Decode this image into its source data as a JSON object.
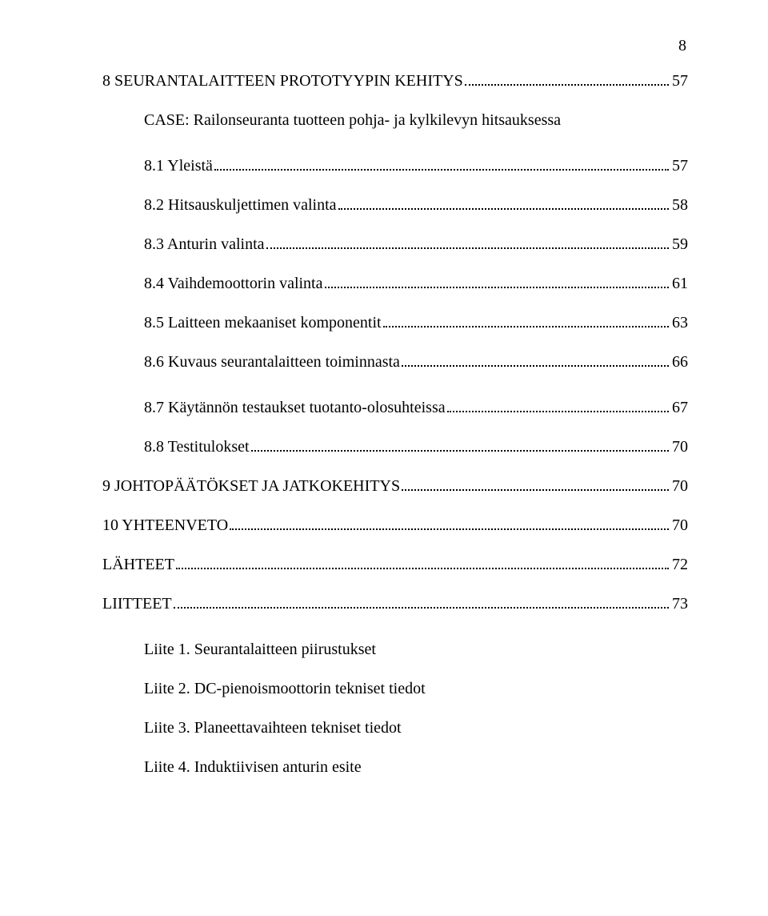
{
  "pageNumber": "8",
  "entries": [
    {
      "indent": 0,
      "label": "8 SEURANTALAITTEEN PROTOTYYPIN KEHITYS",
      "page": "57"
    },
    {
      "indent": 1,
      "nonum": true,
      "label": "CASE: Railonseuranta tuotteen pohja- ja kylkilevyn hitsauksessa"
    },
    {
      "indent": 1,
      "label": "8.1 Yleistä",
      "page": "57"
    },
    {
      "indent": 1,
      "label": "8.2 Hitsauskuljettimen valinta",
      "page": "58"
    },
    {
      "indent": 1,
      "label": "8.3 Anturin valinta",
      "page": "59"
    },
    {
      "indent": 1,
      "label": "8.4 Vaihdemoottorin valinta",
      "page": "61"
    },
    {
      "indent": 1,
      "label": "8.5 Laitteen mekaaniset komponentit",
      "page": "63"
    },
    {
      "indent": 1,
      "label": "8.6 Kuvaus seurantalaitteen toiminnasta",
      "page": "66"
    },
    {
      "indent": 1,
      "label": "8.7 Käytännön testaukset tuotanto-olosuhteissa",
      "page": "67"
    },
    {
      "indent": 1,
      "label": "8.8 Testitulokset",
      "page": "70"
    },
    {
      "indent": 0,
      "label": "9 JOHTOPÄÄTÖKSET JA JATKOKEHITYS",
      "page": "70"
    },
    {
      "indent": 0,
      "label": "10 YHTEENVETO",
      "page": "70"
    },
    {
      "indent": 0,
      "label": "LÄHTEET",
      "page": "72"
    },
    {
      "indent": 0,
      "label": "LIITTEET",
      "page": "73"
    }
  ],
  "appendices": [
    "Liite 1. Seurantalaitteen piirustukset",
    "Liite 2. DC-pienoismoottorin tekniset tiedot",
    "Liite 3. Planeettavaihteen tekniset tiedot",
    "Liite 4. Induktiivisen anturin esite"
  ]
}
